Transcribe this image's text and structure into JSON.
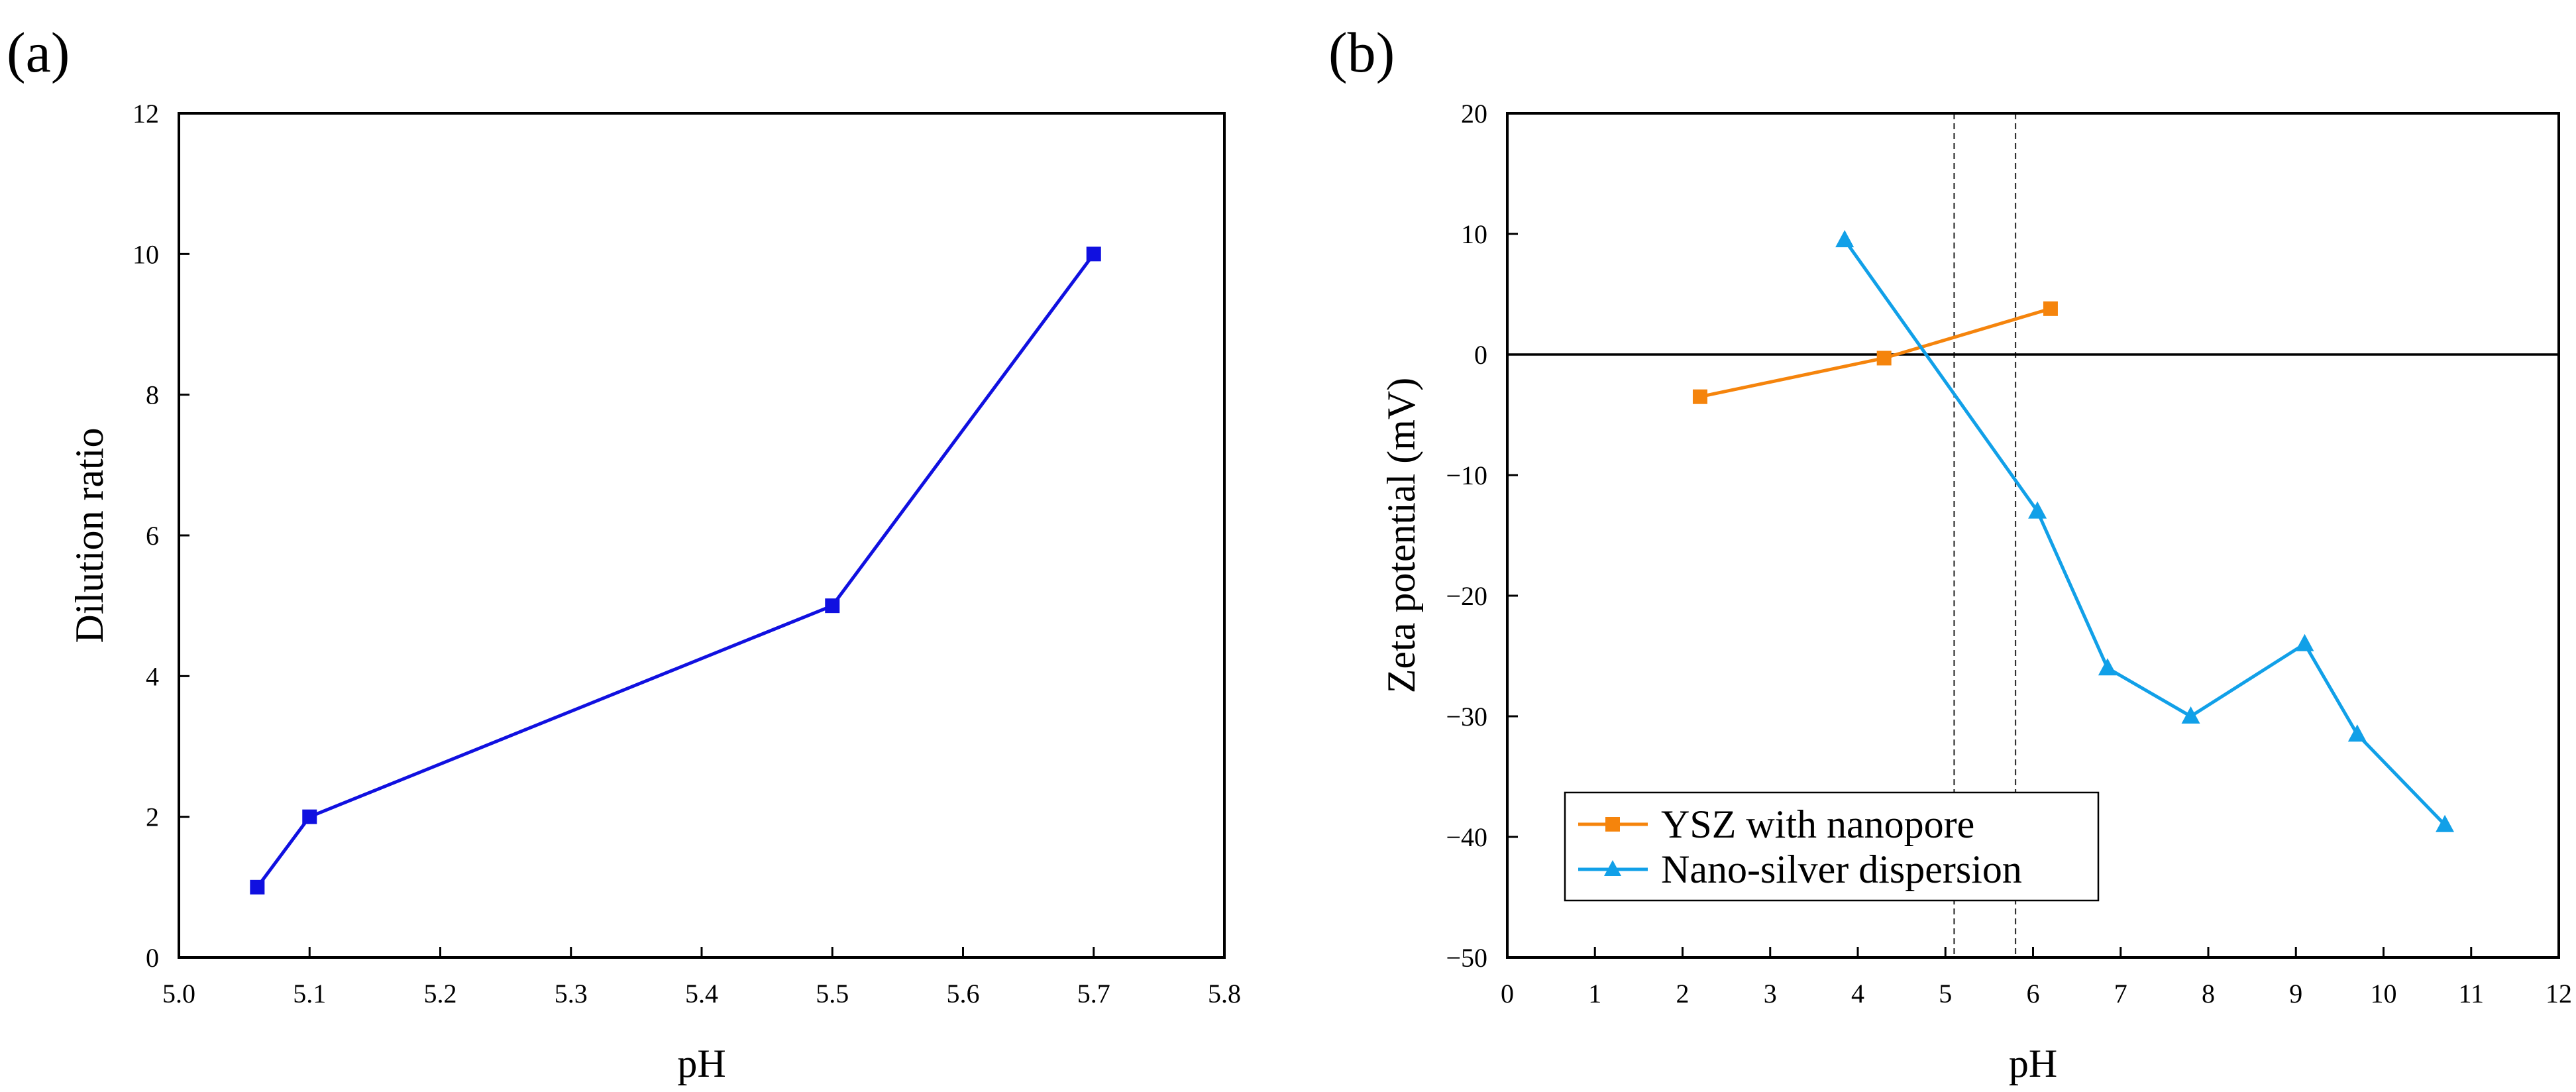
{
  "chart_data": [
    {
      "type": "line",
      "panel_label": "(a)",
      "xlabel": "pH",
      "ylabel": "Dilution ratio",
      "xlim": [
        5.0,
        5.8
      ],
      "ylim": [
        0,
        12
      ],
      "xticks": [
        "5.0",
        "5.1",
        "5.2",
        "5.3",
        "5.4",
        "5.5",
        "5.6",
        "5.7",
        "5.8"
      ],
      "yticks": [
        "0",
        "2",
        "4",
        "6",
        "8",
        "10",
        "12"
      ],
      "series": [
        {
          "name": "Dilution ratio",
          "color": "#1010e0",
          "marker": "square",
          "x": [
            5.06,
            5.1,
            5.5,
            5.7
          ],
          "y": [
            1,
            2,
            5,
            10
          ]
        }
      ]
    },
    {
      "type": "line",
      "panel_label": "(b)",
      "xlabel": "pH",
      "ylabel": "Zeta potential (mV)",
      "xlim": [
        0,
        12
      ],
      "ylim": [
        -50,
        20
      ],
      "xticks": [
        "0",
        "1",
        "2",
        "3",
        "4",
        "5",
        "6",
        "7",
        "8",
        "9",
        "10",
        "11",
        "12"
      ],
      "yticks": [
        "20",
        "10",
        "0",
        "−10",
        "−20",
        "−30",
        "−40",
        "−50"
      ],
      "reference_lines": {
        "horizontal_zero_y": 0,
        "dashed_vertical_x": [
          5.1,
          5.8
        ]
      },
      "legend_position": "bottom-left",
      "series": [
        {
          "name": "YSZ with nanopore",
          "color": "#f5840c",
          "marker": "square",
          "x": [
            2.2,
            4.3,
            6.2
          ],
          "y": [
            -3.5,
            -0.3,
            3.8
          ]
        },
        {
          "name": "Nano-silver dispersion",
          "color": "#11a0e8",
          "marker": "triangle",
          "x": [
            3.85,
            6.05,
            6.85,
            7.8,
            9.1,
            9.7,
            10.7
          ],
          "y": [
            9.5,
            -13,
            -26,
            -30,
            -24,
            -31.5,
            -39
          ]
        }
      ]
    }
  ]
}
